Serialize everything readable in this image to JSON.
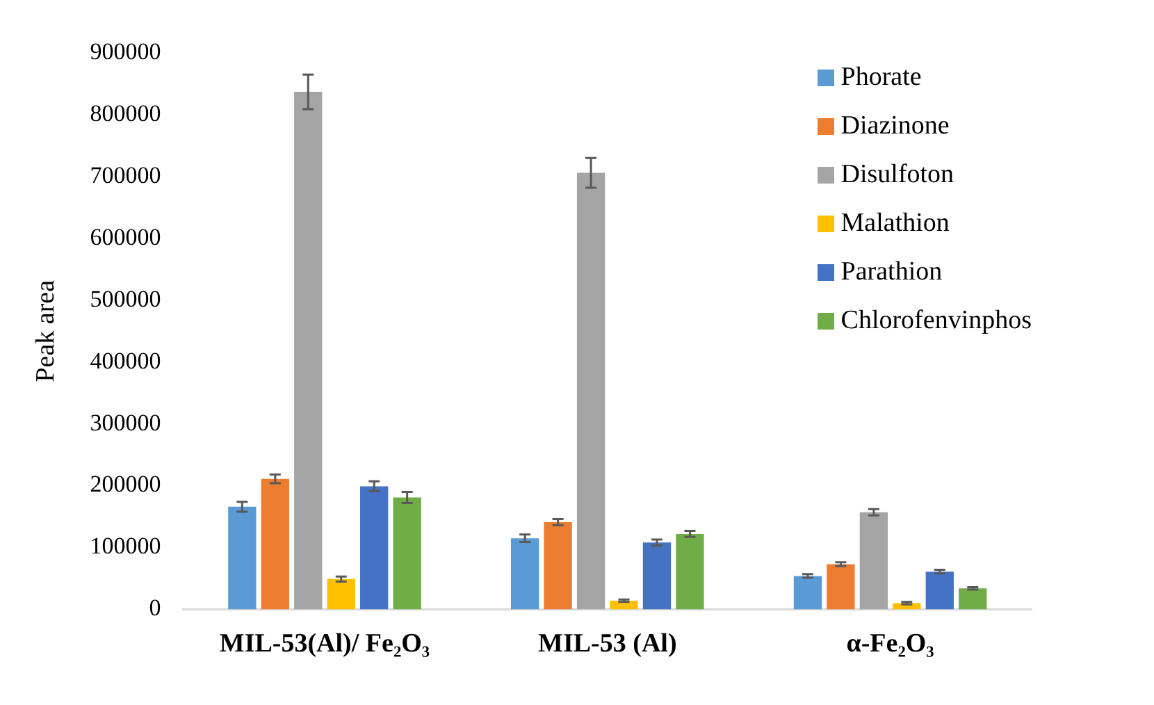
{
  "chart_data": {
    "type": "bar",
    "ylabel": "Peak area",
    "categories": [
      "MIL-53(Al)/ Fe₂O₃",
      "MIL-53 (Al)",
      "α-Fe₂O₃"
    ],
    "ylim": [
      0,
      900000
    ],
    "yticks": [
      0,
      100000,
      200000,
      300000,
      400000,
      500000,
      600000,
      700000,
      800000,
      900000
    ],
    "grid": false,
    "legend": "top right",
    "series": [
      {
        "name": "Phorate",
        "color": "#5b9bd5",
        "values": [
          166000,
          115000,
          54000
        ],
        "errors": [
          8000,
          6000,
          3000
        ]
      },
      {
        "name": "Diazinone",
        "color": "#ed7d31",
        "values": [
          211000,
          141000,
          73000
        ],
        "errors": [
          7000,
          5000,
          3000
        ]
      },
      {
        "name": "Disulfoton",
        "color": "#a5a5a5",
        "values": [
          837000,
          706000,
          157000
        ],
        "errors": [
          28000,
          24000,
          5000
        ]
      },
      {
        "name": "Malathion",
        "color": "#ffc000",
        "values": [
          49000,
          14000,
          10000
        ],
        "errors": [
          4000,
          2000,
          2000
        ]
      },
      {
        "name": "Parathion",
        "color": "#4472c4",
        "values": [
          199000,
          108000,
          61000
        ],
        "errors": [
          8000,
          5000,
          3000
        ]
      },
      {
        "name": "Chlorofenvinphos",
        "color": "#70ad47",
        "values": [
          181000,
          122000,
          34000
        ],
        "errors": [
          9000,
          5000,
          2000
        ]
      }
    ]
  }
}
